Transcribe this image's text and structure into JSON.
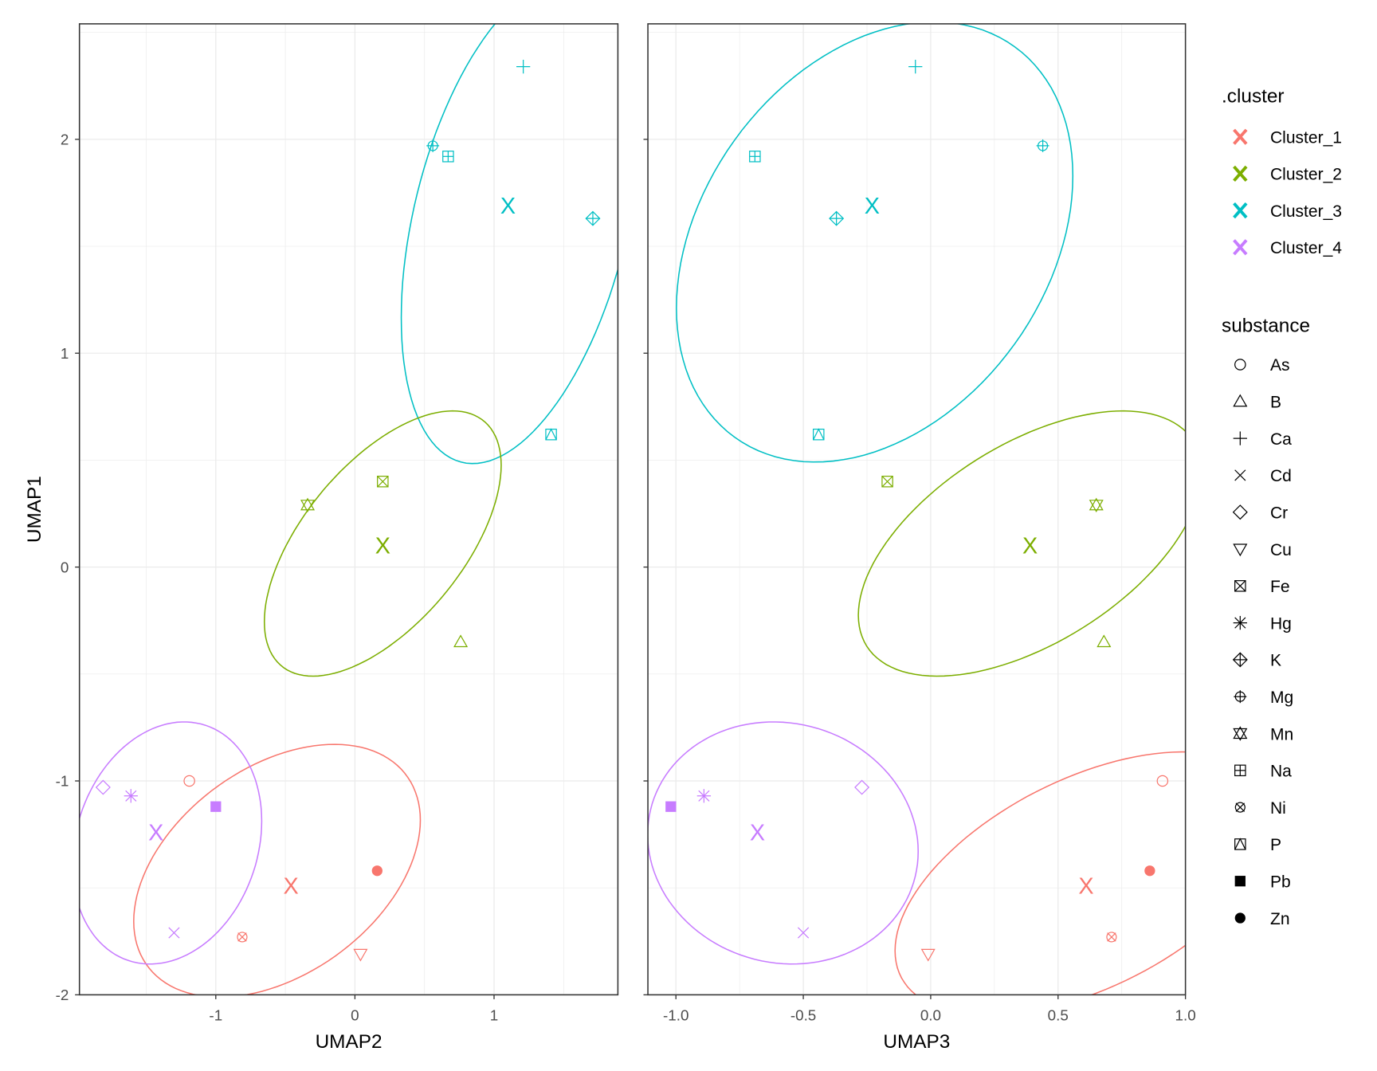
{
  "chart_data": {
    "type": "scatter",
    "colors": {
      "Cluster_1": "#F8766D",
      "Cluster_2": "#7CAE00",
      "Cluster_3": "#00BFC4",
      "Cluster_4": "#C77CFF"
    },
    "panels": [
      {
        "xlabel": "UMAP2",
        "ylabel": "UMAP1",
        "xlim": [
          -1.98,
          1.89
        ],
        "ylim": [
          -2.0,
          2.54
        ],
        "xticks": [
          -1,
          0,
          1
        ],
        "xtick_labels": [
          "-1",
          "0",
          "1"
        ],
        "yticks": [
          2,
          1,
          0,
          -1,
          -2
        ],
        "ytick_labels": [
          "2",
          "1",
          "0",
          "-1",
          "-2"
        ],
        "points": [
          {
            "substance": "Ca",
            "cluster": "Cluster_3",
            "x": 1.21,
            "y": 2.34
          },
          {
            "substance": "Mg",
            "cluster": "Cluster_3",
            "x": 0.56,
            "y": 1.97
          },
          {
            "substance": "Na",
            "cluster": "Cluster_3",
            "x": 0.67,
            "y": 1.92
          },
          {
            "substance": "K",
            "cluster": "Cluster_3",
            "x": 1.71,
            "y": 1.63
          },
          {
            "substance": "P",
            "cluster": "Cluster_3",
            "x": 1.41,
            "y": 0.62
          },
          {
            "substance": "Fe",
            "cluster": "Cluster_2",
            "x": 0.2,
            "y": 0.4
          },
          {
            "substance": "Mn",
            "cluster": "Cluster_2",
            "x": -0.34,
            "y": 0.29
          },
          {
            "substance": "B",
            "cluster": "Cluster_2",
            "x": 0.76,
            "y": -0.35
          },
          {
            "substance": "As",
            "cluster": "Cluster_1",
            "x": -1.19,
            "y": -1.0
          },
          {
            "substance": "Zn",
            "cluster": "Cluster_1",
            "x": 0.16,
            "y": -1.42
          },
          {
            "substance": "Ni",
            "cluster": "Cluster_1",
            "x": -0.81,
            "y": -1.73
          },
          {
            "substance": "Cu",
            "cluster": "Cluster_1",
            "x": 0.04,
            "y": -1.81
          },
          {
            "substance": "Cr",
            "cluster": "Cluster_4",
            "x": -1.81,
            "y": -1.03
          },
          {
            "substance": "Hg",
            "cluster": "Cluster_4",
            "x": -1.61,
            "y": -1.07
          },
          {
            "substance": "Pb",
            "cluster": "Cluster_4",
            "x": -1.0,
            "y": -1.12
          },
          {
            "substance": "Cd",
            "cluster": "Cluster_4",
            "x": -1.3,
            "y": -1.71
          }
        ],
        "centroids": [
          {
            "cluster": "Cluster_3",
            "x": 1.1,
            "y": 1.69
          },
          {
            "cluster": "Cluster_2",
            "x": 0.2,
            "y": 0.1
          },
          {
            "cluster": "Cluster_1",
            "x": -0.46,
            "y": -1.49
          },
          {
            "cluster": "Cluster_4",
            "x": -1.43,
            "y": -1.24
          }
        ],
        "ellipses": [
          {
            "cluster": "Cluster_3",
            "cx": 1.19,
            "cy": 1.62,
            "sdx": 0.857,
            "sdy": 1.136,
            "r": 0.4
          },
          {
            "cluster": "Cluster_2",
            "cx": 0.2,
            "cy": 0.11,
            "sdx": 0.851,
            "sdy": 0.62,
            "r": 0.59
          },
          {
            "cluster": "Cluster_1",
            "cx": -0.56,
            "cy": -1.42,
            "sdx": 1.03,
            "sdy": 0.591,
            "r": 0.4
          },
          {
            "cluster": "Cluster_4",
            "cx": -1.35,
            "cy": -1.29,
            "sdx": 0.68,
            "sdy": 0.566,
            "r": 0.18
          }
        ]
      },
      {
        "xlabel": "UMAP3",
        "ylabel": "",
        "xlim": [
          -1.11,
          1.0
        ],
        "ylim": [
          -2.0,
          2.54
        ],
        "xticks": [
          -1.0,
          -0.5,
          0.0,
          0.5,
          1.0
        ],
        "xtick_labels": [
          "-1.0",
          "-0.5",
          "0.0",
          "0.5",
          "1.0"
        ],
        "yticks": [
          2,
          1,
          0,
          -1,
          -2
        ],
        "ytick_labels": [],
        "points": [
          {
            "substance": "Ca",
            "cluster": "Cluster_3",
            "x": -0.06,
            "y": 2.34
          },
          {
            "substance": "Mg",
            "cluster": "Cluster_3",
            "x": 0.44,
            "y": 1.97
          },
          {
            "substance": "Na",
            "cluster": "Cluster_3",
            "x": -0.69,
            "y": 1.92
          },
          {
            "substance": "K",
            "cluster": "Cluster_3",
            "x": -0.37,
            "y": 1.63
          },
          {
            "substance": "P",
            "cluster": "Cluster_3",
            "x": -0.44,
            "y": 0.62
          },
          {
            "substance": "Fe",
            "cluster": "Cluster_2",
            "x": -0.17,
            "y": 0.4
          },
          {
            "substance": "Mn",
            "cluster": "Cluster_2",
            "x": 0.65,
            "y": 0.29
          },
          {
            "substance": "B",
            "cluster": "Cluster_2",
            "x": 0.68,
            "y": -0.35
          },
          {
            "substance": "As",
            "cluster": "Cluster_1",
            "x": 0.91,
            "y": -1.0
          },
          {
            "substance": "Zn",
            "cluster": "Cluster_1",
            "x": 0.86,
            "y": -1.42
          },
          {
            "substance": "Ni",
            "cluster": "Cluster_1",
            "x": 0.71,
            "y": -1.73
          },
          {
            "substance": "Cu",
            "cluster": "Cluster_1",
            "x": -0.01,
            "y": -1.81
          },
          {
            "substance": "Cr",
            "cluster": "Cluster_4",
            "x": -0.27,
            "y": -1.03
          },
          {
            "substance": "Hg",
            "cluster": "Cluster_4",
            "x": -0.89,
            "y": -1.07
          },
          {
            "substance": "Pb",
            "cluster": "Cluster_4",
            "x": -1.02,
            "y": -1.12
          },
          {
            "substance": "Cd",
            "cluster": "Cluster_4",
            "x": -0.5,
            "y": -1.71
          }
        ],
        "centroids": [
          {
            "cluster": "Cluster_3",
            "x": -0.23,
            "y": 1.69
          },
          {
            "cluster": "Cluster_2",
            "x": 0.39,
            "y": 0.1
          },
          {
            "cluster": "Cluster_1",
            "x": 0.61,
            "y": -1.49
          },
          {
            "cluster": "Cluster_4",
            "x": -0.68,
            "y": -1.24
          }
        ],
        "ellipses": [
          {
            "cluster": "Cluster_3",
            "cx": -0.22,
            "cy": 1.52,
            "sdx": 0.778,
            "sdy": 1.029,
            "r": 0.3
          },
          {
            "cluster": "Cluster_2",
            "cx": 0.39,
            "cy": 0.11,
            "sdx": 0.674,
            "sdy": 0.62,
            "r": 0.54
          },
          {
            "cluster": "Cluster_1",
            "cx": 0.61,
            "cy": -1.48,
            "sdx": 0.75,
            "sdy": 0.616,
            "r": 0.51
          },
          {
            "cluster": "Cluster_4",
            "cx": -0.58,
            "cy": -1.29,
            "sdx": 0.531,
            "sdy": 0.566,
            "r": -0.07
          }
        ]
      }
    ],
    "centroid_label": "X",
    "legend": {
      "placement": "right",
      "cluster_title": ".cluster",
      "clusters": [
        "Cluster_1",
        "Cluster_2",
        "Cluster_3",
        "Cluster_4"
      ],
      "substance_title": "substance",
      "substances": [
        "As",
        "B",
        "Ca",
        "Cd",
        "Cr",
        "Cu",
        "Fe",
        "Hg",
        "K",
        "Mg",
        "Mn",
        "Na",
        "Ni",
        "P",
        "Pb",
        "Zn"
      ]
    }
  }
}
